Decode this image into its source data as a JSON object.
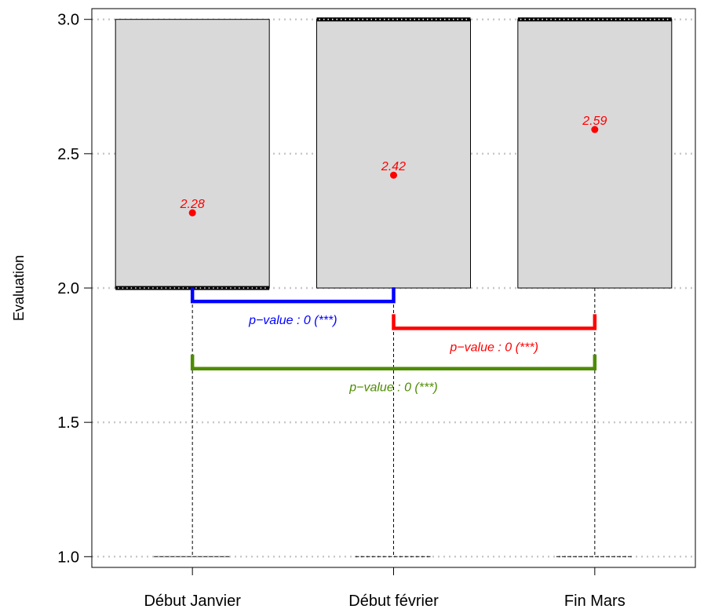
{
  "chart_data": {
    "type": "boxplot",
    "title": "",
    "xlabel": "",
    "ylabel": "Evaluation",
    "ylim": [
      0.96,
      3.04
    ],
    "yticks": [
      1.0,
      1.5,
      2.0,
      2.5,
      3.0
    ],
    "ytick_labels": [
      "1.0",
      "1.5",
      "2.0",
      "2.5",
      "3.0"
    ],
    "grid": "horizontal-dotted",
    "categories": [
      "Début Janvier",
      "Début février",
      "Fin Mars"
    ],
    "boxes": [
      {
        "whisker_low": 1.0,
        "q1": 2.0,
        "median": 2.0,
        "q3": 3.0,
        "whisker_high": 3.0,
        "median_at": "q1"
      },
      {
        "whisker_low": 1.0,
        "q1": 2.0,
        "median": 3.0,
        "q3": 3.0,
        "whisker_high": 3.0,
        "median_at": "q3"
      },
      {
        "whisker_low": 1.0,
        "q1": 2.0,
        "median": 3.0,
        "q3": 3.0,
        "whisker_high": 3.0,
        "median_at": "q3"
      }
    ],
    "means": [
      {
        "category": "Début Janvier",
        "value": 2.28,
        "label": "2.28"
      },
      {
        "category": "Début février",
        "value": 2.42,
        "label": "2.42"
      },
      {
        "category": "Fin Mars",
        "value": 2.59,
        "label": "2.59"
      }
    ],
    "comparisons": [
      {
        "from": 0,
        "to": 1,
        "y": 1.95,
        "color": "#0000ff",
        "label": "p−value : 0 (***)"
      },
      {
        "from": 1,
        "to": 2,
        "y": 1.85,
        "color": "#ff0000",
        "label": "p−value : 0 (***)"
      },
      {
        "from": 0,
        "to": 2,
        "y": 1.7,
        "color": "#4d8c00",
        "label": "p−value : 0 (***)"
      }
    ],
    "colors": {
      "box_fill": "#d9d9d9",
      "mean": "#ff0000",
      "grid": "#c8c8c8"
    }
  }
}
